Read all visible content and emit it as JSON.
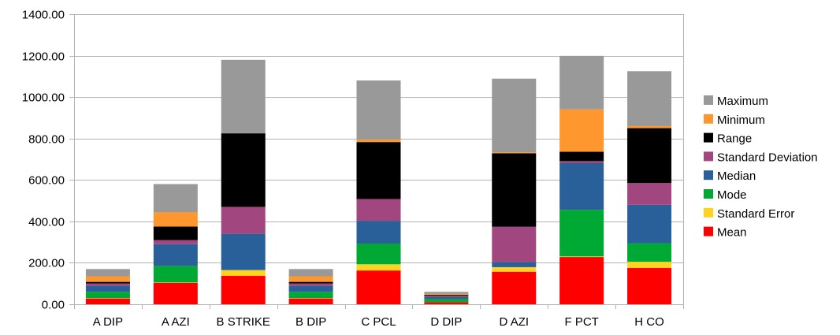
{
  "chart_data": {
    "type": "bar",
    "stacked": true,
    "title": "",
    "xlabel": "",
    "ylabel": "",
    "ylim": [
      0,
      1400
    ],
    "y_ticks": [
      "0.00",
      "200.00",
      "400.00",
      "600.00",
      "800.00",
      "1000.00",
      "1200.00",
      "1400.00"
    ],
    "y_tick_values": [
      0,
      200,
      400,
      600,
      800,
      1000,
      1200,
      1400
    ],
    "grid": "horizontal",
    "legend_position": "right",
    "categories": [
      "A DIP",
      "A AZI",
      "B STRIKE",
      "B DIP",
      "C PCL",
      "D DIP",
      "D AZI",
      "F PCT",
      "H CO"
    ],
    "series": [
      {
        "name": "Mean",
        "color": "#ff0000",
        "values": [
          28,
          103,
          137,
          28,
          163,
          10,
          157,
          228,
          175
        ]
      },
      {
        "name": "Standard Error",
        "color": "#ffd320",
        "values": [
          2,
          2,
          28,
          2,
          30,
          0,
          22,
          3,
          30
        ]
      },
      {
        "name": "Mode",
        "color": "#00a933",
        "values": [
          30,
          80,
          0,
          30,
          100,
          15,
          0,
          225,
          90
        ]
      },
      {
        "name": "Median",
        "color": "#2a6099",
        "values": [
          30,
          105,
          175,
          30,
          110,
          10,
          25,
          225,
          185
        ]
      },
      {
        "name": "Standard Deviation",
        "color": "#a1467e",
        "values": [
          10,
          20,
          130,
          10,
          105,
          5,
          170,
          10,
          105
        ]
      },
      {
        "name": "Range",
        "color": "#000000",
        "values": [
          8,
          65,
          355,
          8,
          275,
          5,
          355,
          45,
          265
        ]
      },
      {
        "name": "Minimum",
        "color": "#ff972f",
        "values": [
          27,
          70,
          0,
          27,
          12,
          5,
          5,
          205,
          10
        ]
      },
      {
        "name": "Maximum",
        "color": "#999999",
        "values": [
          35,
          135,
          355,
          35,
          285,
          10,
          355,
          258,
          265
        ]
      }
    ]
  }
}
